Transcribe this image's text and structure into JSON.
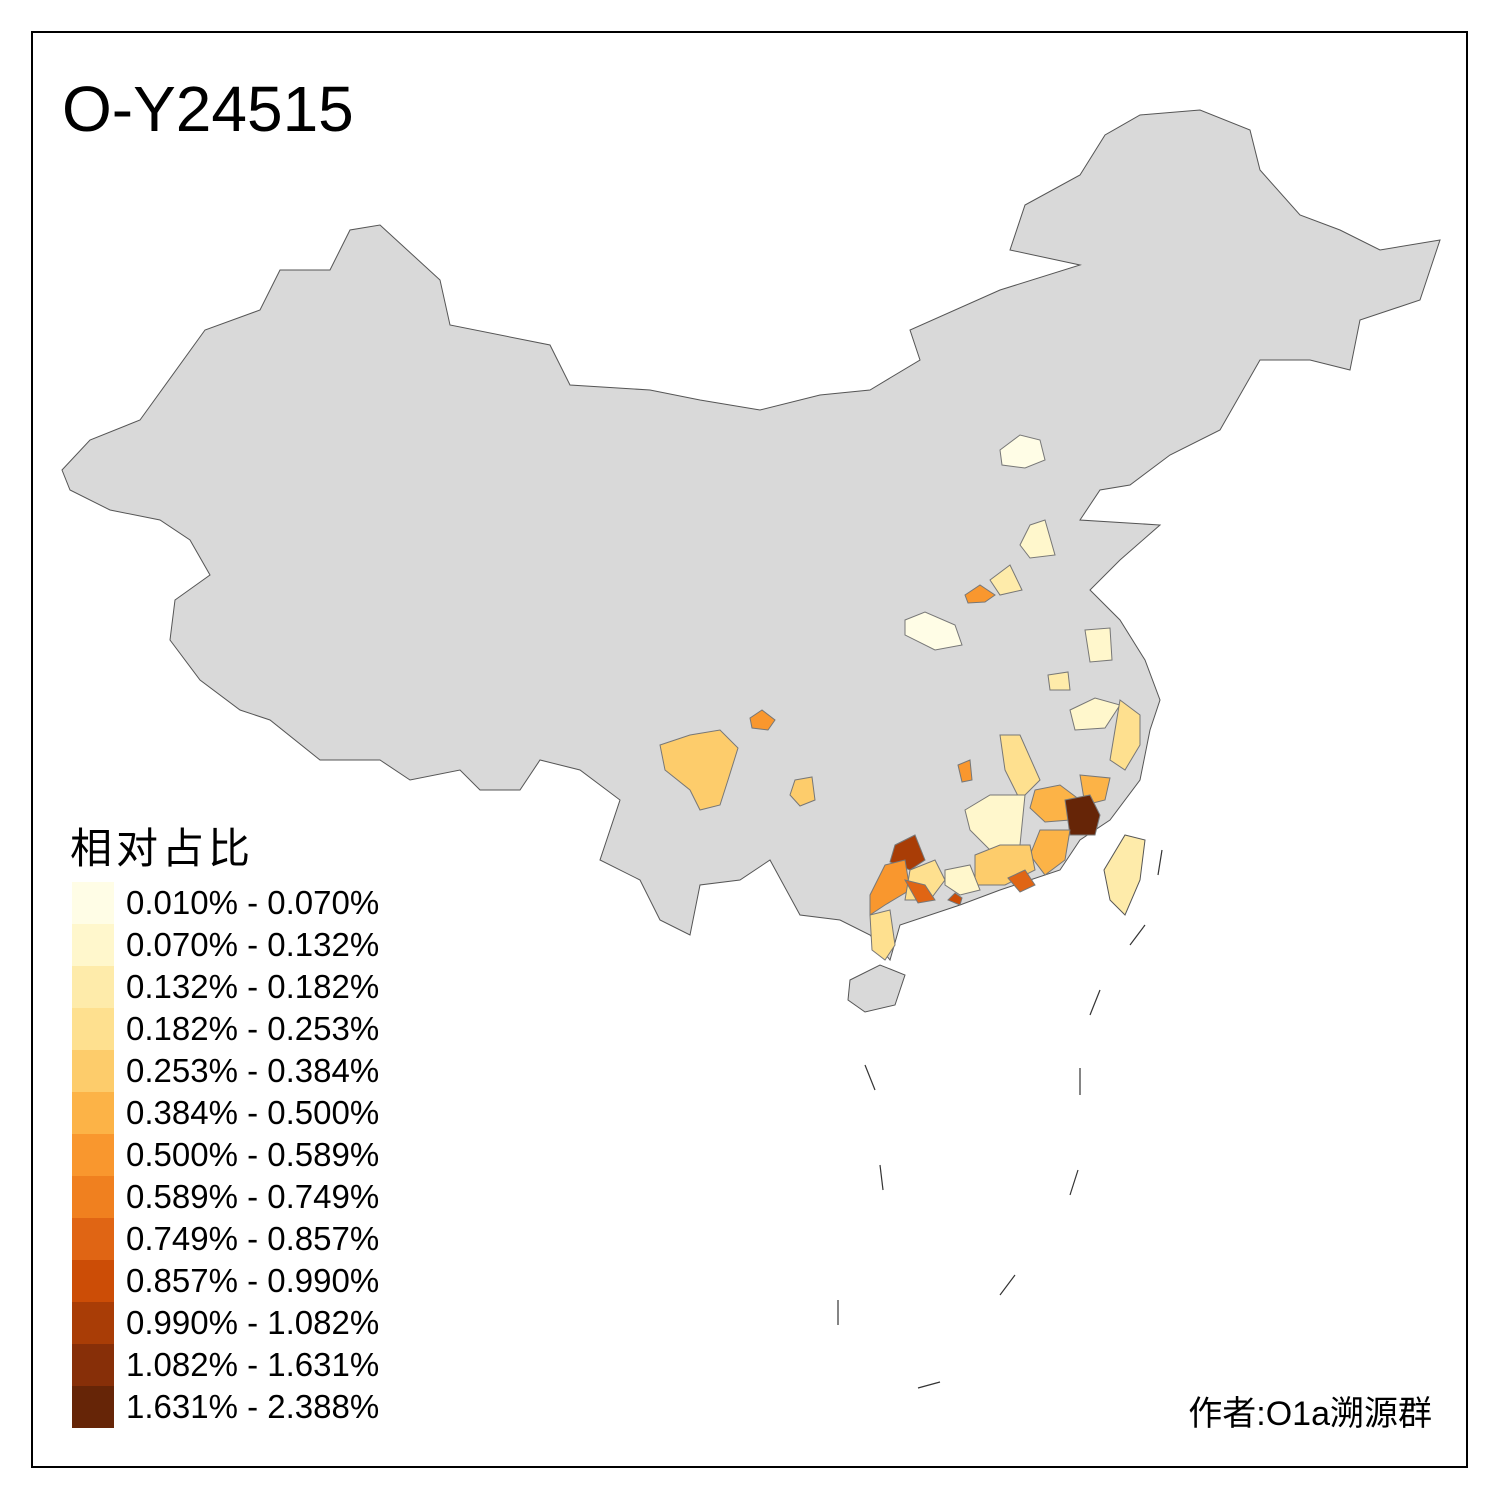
{
  "title": "O-Y24515",
  "legend": {
    "title": "相对占比",
    "items": [
      {
        "label": "0.010% - 0.070%",
        "color": "#FFFDE6"
      },
      {
        "label": "0.070% - 0.132%",
        "color": "#FFF7CC"
      },
      {
        "label": "0.132% - 0.182%",
        "color": "#FEEBAA"
      },
      {
        "label": "0.182% - 0.253%",
        "color": "#FEE08F"
      },
      {
        "label": "0.253% - 0.384%",
        "color": "#FDCC6B"
      },
      {
        "label": "0.384% - 0.500%",
        "color": "#FCB347"
      },
      {
        "label": "0.500% - 0.589%",
        "color": "#F9972E"
      },
      {
        "label": "0.589% - 0.749%",
        "color": "#F0801F"
      },
      {
        "label": "0.749% - 0.857%",
        "color": "#E06514"
      },
      {
        "label": "0.857% - 0.990%",
        "color": "#CC4D06"
      },
      {
        "label": "0.990% - 1.082%",
        "color": "#A93D06"
      },
      {
        "label": "1.082% - 1.631%",
        "color": "#872F08"
      },
      {
        "label": "1.631% - 2.388%",
        "color": "#662507"
      }
    ]
  },
  "map": {
    "base_color": "#D9D9D9",
    "border_color": "#555555"
  },
  "author": "作者:O1a溯源群"
}
